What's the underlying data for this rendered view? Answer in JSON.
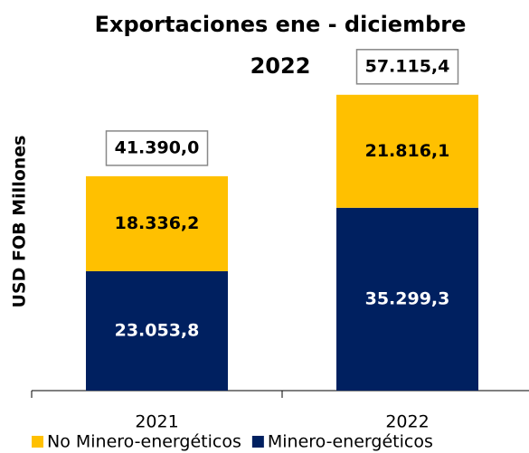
{
  "chart_data": {
    "type": "stacked_bar",
    "title": "Exportaciones ene - diciembre 2022",
    "ylabel": "USD FOB Millones",
    "categories": [
      "2021",
      "2022"
    ],
    "series": [
      {
        "name": "Minero-energéticos",
        "color": "#002060",
        "values": [
          23053.8,
          35299.3
        ],
        "value_labels": [
          "23.053,8",
          "35.299,3"
        ]
      },
      {
        "name": "No Minero-energéticos",
        "color": "#ffc000",
        "values": [
          18336.2,
          21816.1
        ],
        "value_labels": [
          "18.336,2",
          "21.816,1"
        ]
      }
    ],
    "totals": [
      41390.0,
      57115.4
    ],
    "total_labels": [
      "41.390,0",
      "57.115,4"
    ],
    "ylim": [
      0,
      70000
    ]
  }
}
